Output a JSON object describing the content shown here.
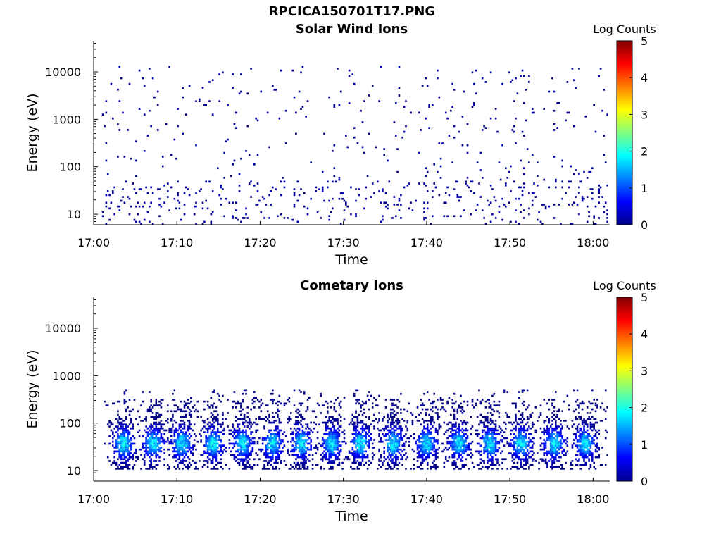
{
  "figure_title": "RPCICA150701T17.PNG",
  "chart_data": [
    {
      "type": "heatmap",
      "title": "Solar Wind Ions",
      "xlabel": "Time",
      "ylabel": "Energy (eV)",
      "x_ticks": [
        "17:00",
        "17:10",
        "17:20",
        "17:30",
        "17:40",
        "17:50",
        "18:00"
      ],
      "xlim": [
        "17:00",
        "18:02"
      ],
      "y_scale": "log",
      "y_ticks": [
        "10",
        "100",
        "1000",
        "10000"
      ],
      "ylim": [
        6,
        45000
      ],
      "colorbar": {
        "label": "Log Counts",
        "ticks": [
          "0",
          "1",
          "2",
          "3",
          "4",
          "5"
        ],
        "range": [
          0,
          5
        ],
        "colormap": "jet"
      },
      "description": "sparse scattered low counts (about 0-0.5 log counts) across 10 eV - 12000 eV",
      "cell_value_range": [
        0,
        0.5
      ]
    },
    {
      "type": "heatmap",
      "title": "Cometary Ions",
      "xlabel": "Time",
      "ylabel": "Energy (eV)",
      "x_ticks": [
        "17:00",
        "17:10",
        "17:20",
        "17:30",
        "17:40",
        "17:50",
        "18:00"
      ],
      "xlim": [
        "17:00",
        "18:02"
      ],
      "y_scale": "log",
      "y_ticks": [
        "10",
        "100",
        "1000",
        "10000"
      ],
      "ylim": [
        6,
        45000
      ],
      "colorbar": {
        "label": "Log Counts",
        "ticks": [
          "0",
          "1",
          "2",
          "3",
          "4",
          "5"
        ],
        "range": [
          0,
          5
        ],
        "colormap": "jet"
      },
      "description": "periodic bursts roughly every 3-4 minutes, peak near 30-40 eV, extending up to about 400 eV",
      "cell_value_range": [
        0,
        2
      ]
    }
  ]
}
